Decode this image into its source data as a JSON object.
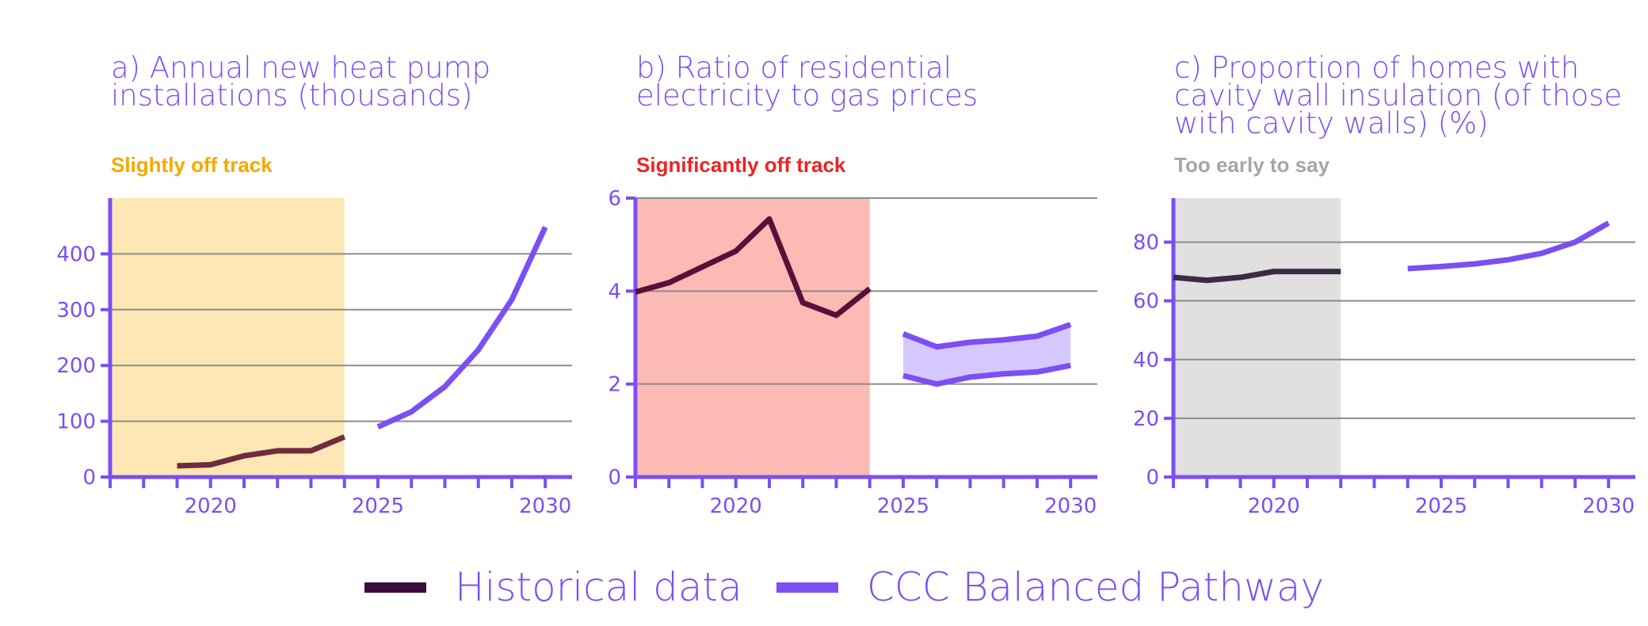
{
  "colors": {
    "historical": "#3a0d3d",
    "pathway": "#7b4ff2",
    "axis": "#7b4ff2",
    "grid": "#8c8c8c"
  },
  "legend": {
    "historical_label": "Historical data",
    "pathway_label": "CCC Balanced Pathway"
  },
  "chart_data": [
    {
      "type": "line",
      "title": "a) Annual new heat pump\ninstallations (thousands)",
      "status": "Slightly off track",
      "status_color": "#f5a800",
      "shade_color": "#fde8b5",
      "shade_range": [
        2017,
        2024
      ],
      "xlim": [
        2017,
        2030.8
      ],
      "ylim": [
        0,
        500
      ],
      "yticks": [
        0,
        100,
        200,
        300,
        400
      ],
      "xticks": [
        2020,
        2025,
        2030
      ],
      "series": [
        {
          "name": "Historical data",
          "x": [
            2019,
            2020,
            2021,
            2022,
            2023,
            2024
          ],
          "y": [
            20,
            22,
            38,
            47,
            47,
            72
          ]
        },
        {
          "name": "CCC Balanced Pathway",
          "x": [
            2025,
            2026,
            2027,
            2028,
            2029,
            2030
          ],
          "y": [
            90,
            117,
            162,
            228,
            318,
            448
          ]
        }
      ]
    },
    {
      "type": "line",
      "title": "b) Ratio of residential\nelectricity to gas prices",
      "status": "Significantly off track",
      "status_color": "#ee2222",
      "shade_color": "#fcbab5",
      "shade_range": [
        2017,
        2024
      ],
      "xlim": [
        2017,
        2030.8
      ],
      "ylim": [
        0,
        6
      ],
      "yticks": [
        0,
        2,
        4,
        6
      ],
      "xticks": [
        2020,
        2025,
        2030
      ],
      "series": [
        {
          "name": "Historical data",
          "x": [
            2017,
            2018,
            2019,
            2020,
            2021,
            2022,
            2023,
            2024
          ],
          "y": [
            3.98,
            4.18,
            4.52,
            4.86,
            5.55,
            3.75,
            3.48,
            4.05
          ]
        }
      ],
      "band": {
        "x": [
          2025,
          2026,
          2027,
          2028,
          2029,
          2030
        ],
        "upper": [
          3.08,
          2.8,
          2.9,
          2.95,
          3.03,
          3.28
        ],
        "lower": [
          2.18,
          2.0,
          2.15,
          2.22,
          2.26,
          2.4
        ]
      }
    },
    {
      "type": "line",
      "title": "c) Proportion of homes with\ncavity wall insulation (of those\nwith cavity walls) (%)",
      "status": "Too early to say",
      "status_color": "#a6a6a6",
      "shade_color": "#e0e0e0",
      "shade_range": [
        2017,
        2022
      ],
      "xlim": [
        2017,
        2030.8
      ],
      "ylim": [
        0,
        95
      ],
      "yticks": [
        0,
        20,
        40,
        60,
        80
      ],
      "xticks": [
        2020,
        2025,
        2030
      ],
      "series": [
        {
          "name": "Historical data",
          "x": [
            2017,
            2018,
            2019,
            2020,
            2021,
            2022
          ],
          "y": [
            68,
            67,
            68,
            70,
            70,
            70
          ]
        },
        {
          "name": "CCC Balanced Pathway",
          "x": [
            2024,
            2025,
            2026,
            2027,
            2028,
            2029,
            2030
          ],
          "y": [
            71,
            71.7,
            72.6,
            74,
            76.2,
            80,
            86.5
          ]
        }
      ]
    }
  ]
}
